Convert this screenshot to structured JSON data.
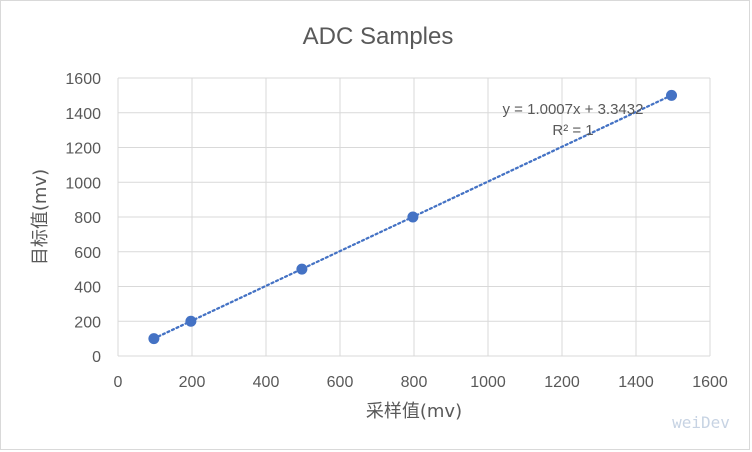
{
  "chart_data": {
    "type": "scatter",
    "title": "ADC Samples",
    "xlabel": "采样值(mv)",
    "ylabel": "目标值(mv)",
    "xlim": [
      0,
      1600
    ],
    "ylim": [
      0,
      1600
    ],
    "x_ticks": [
      "0",
      "200",
      "400",
      "600",
      "800",
      "1000",
      "1200",
      "1400",
      "1600"
    ],
    "y_ticks": [
      "0",
      "200",
      "400",
      "600",
      "800",
      "1000",
      "1200",
      "1400",
      "1600"
    ],
    "grid": true,
    "series": [
      {
        "points": [
          {
            "x": 97,
            "y": 100
          },
          {
            "x": 197,
            "y": 200
          },
          {
            "x": 497,
            "y": 500
          },
          {
            "x": 797,
            "y": 800
          },
          {
            "x": 1496,
            "y": 1500
          }
        ],
        "color": "#4472c4"
      }
    ],
    "trendline": {
      "type": "linear",
      "equation": "y = 1.0007x + 3.3432",
      "r_squared": "R² = 1",
      "slope": 1.0007,
      "intercept": 3.3432,
      "x_range": [
        97,
        1496
      ],
      "color": "#4472c4",
      "style": "dotted"
    }
  },
  "watermark": "weiDev",
  "colors": {
    "grid": "#d9d9d9",
    "text": "#595959",
    "marker": "#4472c4"
  }
}
